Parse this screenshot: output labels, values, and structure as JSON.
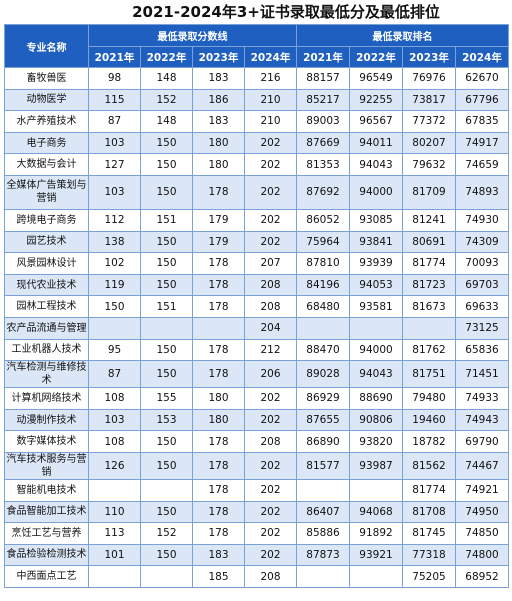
{
  "title": "2021-2024年3+证书录取最低分及最低排位",
  "header": {
    "major_label": "专业名称",
    "score_group": "最低录取分数线",
    "rank_group": "最低录取排名",
    "years": [
      "2021年",
      "2022年",
      "2023年",
      "2024年"
    ]
  },
  "rows": [
    {
      "name": "畜牧兽医",
      "s": [
        "98",
        "148",
        "183",
        "216"
      ],
      "r": [
        "88157",
        "96549",
        "76976",
        "62670"
      ]
    },
    {
      "name": "动物医学",
      "s": [
        "115",
        "152",
        "186",
        "210"
      ],
      "r": [
        "85217",
        "92255",
        "73817",
        "67796"
      ]
    },
    {
      "name": "水产养殖技术",
      "s": [
        "87",
        "148",
        "183",
        "210"
      ],
      "r": [
        "89003",
        "96567",
        "77372",
        "67835"
      ]
    },
    {
      "name": "电子商务",
      "s": [
        "103",
        "150",
        "180",
        "202"
      ],
      "r": [
        "87669",
        "94011",
        "80207",
        "74917"
      ]
    },
    {
      "name": "大数据与会计",
      "s": [
        "127",
        "150",
        "180",
        "202"
      ],
      "r": [
        "81353",
        "94043",
        "79632",
        "74659"
      ]
    },
    {
      "name": "全媒体广告策划与营销",
      "s": [
        "103",
        "150",
        "178",
        "202"
      ],
      "r": [
        "87692",
        "94000",
        "81709",
        "74893"
      ]
    },
    {
      "name": "跨境电子商务",
      "s": [
        "112",
        "151",
        "179",
        "202"
      ],
      "r": [
        "86052",
        "93085",
        "81241",
        "74930"
      ]
    },
    {
      "name": "园艺技术",
      "s": [
        "138",
        "150",
        "179",
        "202"
      ],
      "r": [
        "75964",
        "93841",
        "80691",
        "74309"
      ]
    },
    {
      "name": "风景园林设计",
      "s": [
        "102",
        "150",
        "178",
        "207"
      ],
      "r": [
        "87810",
        "93939",
        "81774",
        "70093"
      ]
    },
    {
      "name": "现代农业技术",
      "s": [
        "119",
        "150",
        "178",
        "208"
      ],
      "r": [
        "84196",
        "94053",
        "81723",
        "69703"
      ]
    },
    {
      "name": "园林工程技术",
      "s": [
        "150",
        "151",
        "178",
        "208"
      ],
      "r": [
        "68480",
        "93581",
        "81673",
        "69633"
      ]
    },
    {
      "name": "农产品流通与管理",
      "s": [
        "",
        "",
        "",
        "204"
      ],
      "r": [
        "",
        "",
        "",
        "73125"
      ]
    },
    {
      "name": "工业机器人技术",
      "s": [
        "95",
        "150",
        "178",
        "212"
      ],
      "r": [
        "88470",
        "94000",
        "81762",
        "65836"
      ]
    },
    {
      "name": "汽车检测与维修技术",
      "s": [
        "87",
        "150",
        "178",
        "206"
      ],
      "r": [
        "89028",
        "94043",
        "81751",
        "71451"
      ]
    },
    {
      "name": "计算机网络技术",
      "s": [
        "108",
        "155",
        "180",
        "202"
      ],
      "r": [
        "86929",
        "88690",
        "79480",
        "74933"
      ]
    },
    {
      "name": "动漫制作技术",
      "s": [
        "103",
        "153",
        "180",
        "202"
      ],
      "r": [
        "87655",
        "90806",
        "19460",
        "74943"
      ]
    },
    {
      "name": "数字媒体技术",
      "s": [
        "108",
        "150",
        "178",
        "208"
      ],
      "r": [
        "86890",
        "93820",
        "18782",
        "69790"
      ]
    },
    {
      "name": "汽车技术服务与营销",
      "s": [
        "126",
        "150",
        "178",
        "202"
      ],
      "r": [
        "81577",
        "93987",
        "81562",
        "74467"
      ]
    },
    {
      "name": "智能机电技术",
      "s": [
        "",
        "",
        "178",
        "202"
      ],
      "r": [
        "",
        "",
        "81774",
        "74921"
      ]
    },
    {
      "name": "食品智能加工技术",
      "s": [
        "110",
        "150",
        "178",
        "202"
      ],
      "r": [
        "86407",
        "94068",
        "81708",
        "74950"
      ]
    },
    {
      "name": "烹饪工艺与营养",
      "s": [
        "113",
        "152",
        "178",
        "202"
      ],
      "r": [
        "85886",
        "91892",
        "81745",
        "74850"
      ]
    },
    {
      "name": "食品检验检测技术",
      "s": [
        "101",
        "150",
        "183",
        "202"
      ],
      "r": [
        "87873",
        "93921",
        "77318",
        "74800"
      ]
    },
    {
      "name": "中西面点工艺",
      "s": [
        "",
        "",
        "185",
        "208"
      ],
      "r": [
        "",
        "",
        "75205",
        "68952"
      ]
    }
  ]
}
